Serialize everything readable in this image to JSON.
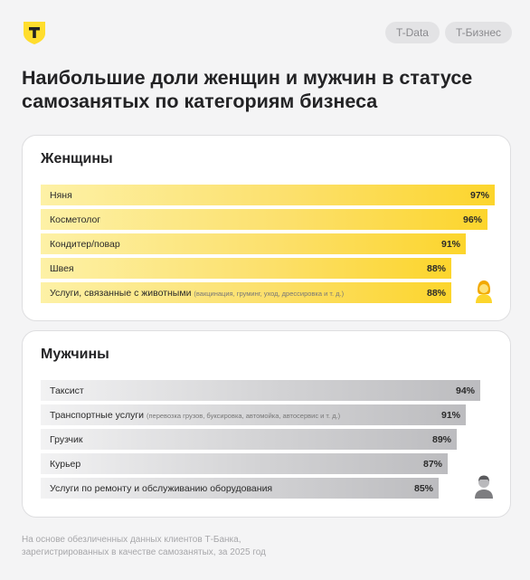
{
  "header": {
    "logo_icon": "t-bank-shield-icon",
    "tags": [
      "T-Data",
      "T-Бизнес"
    ]
  },
  "title": "Наибольшие доли женщин и мужчин в статусе самозанятых по категориям бизнеса",
  "colors": {
    "women_bar": "#fcd52c",
    "men_bar": "#bcbcbf",
    "brand": "#ffdd2d"
  },
  "footnote": {
    "line1": "На основе обезличенных данных клиентов Т-Банка,",
    "line2": "зарегистрированных в качестве самозанятых, за 2025 год"
  },
  "chart_data": [
    {
      "type": "bar",
      "orientation": "horizontal",
      "title": "Женщины",
      "unit": "%",
      "icon": "woman-avatar-icon",
      "categories": [
        "Няня",
        "Косметолог",
        "Кондитер/повар",
        "Швея",
        "Услуги, связанные с животными"
      ],
      "notes": [
        "",
        "",
        "",
        "",
        "(вакцинация, груминг, уход, дрессировка и т. д.)"
      ],
      "values": [
        97,
        96,
        91,
        88,
        88
      ],
      "value_labels": [
        "97%",
        "96%",
        "91%",
        "88%",
        "88%"
      ]
    },
    {
      "type": "bar",
      "orientation": "horizontal",
      "title": "Мужчины",
      "unit": "%",
      "icon": "man-avatar-icon",
      "categories": [
        "Таксист",
        "Транспортные услуги",
        "Грузчик",
        "Курьер",
        "Услуги по ремонту и обслуживанию оборудования"
      ],
      "notes": [
        "",
        "(перевозка грузов, буксировка, автомойка, автосервис и т. д.)",
        "",
        "",
        ""
      ],
      "values": [
        94,
        91,
        89,
        87,
        85
      ],
      "value_labels": [
        "94%",
        "91%",
        "89%",
        "87%",
        "85%"
      ]
    }
  ]
}
